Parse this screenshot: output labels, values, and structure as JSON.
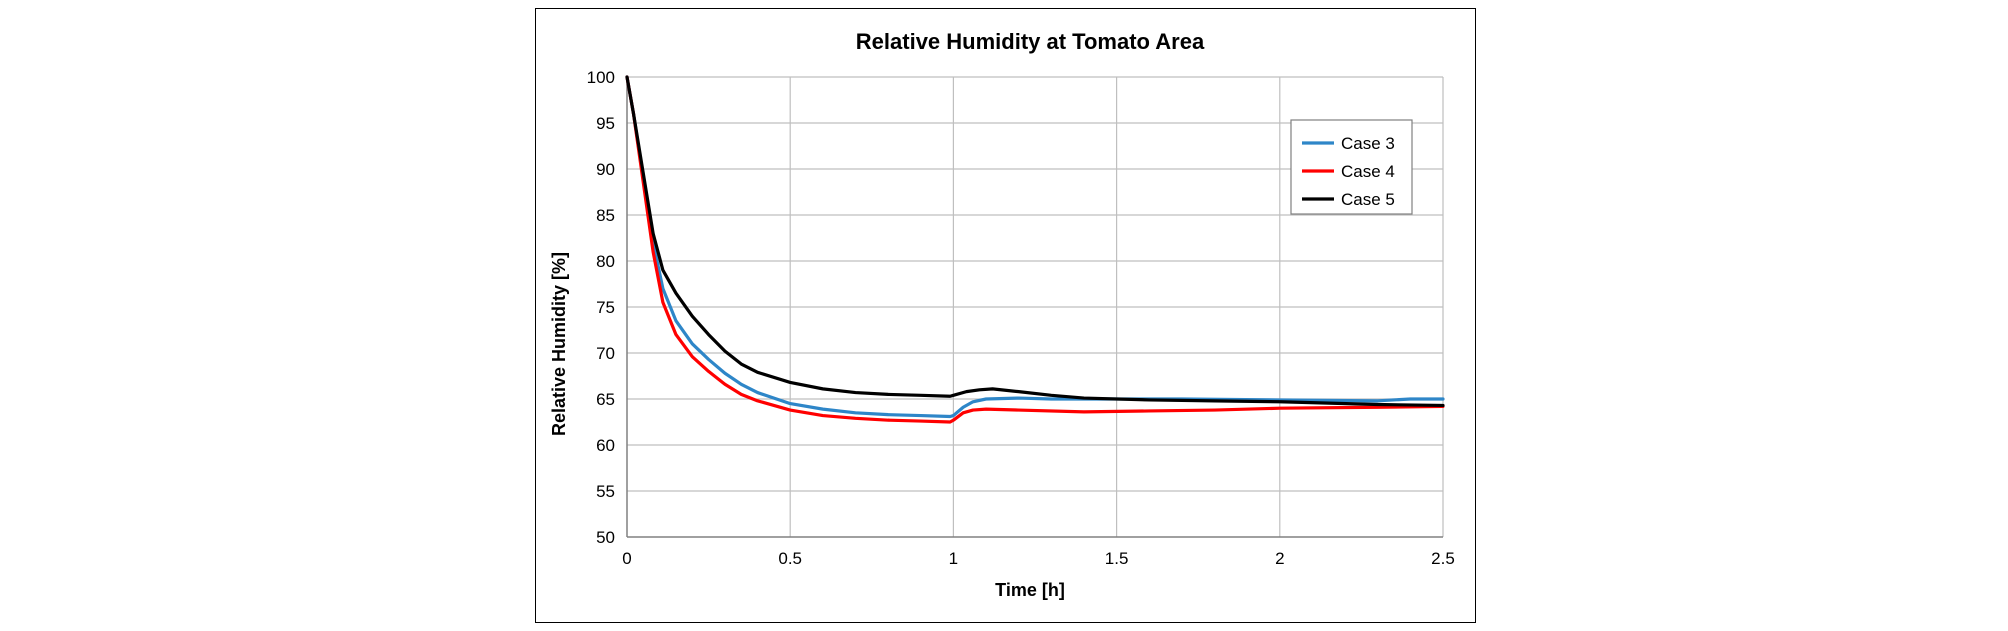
{
  "chart_data": {
    "type": "line",
    "title": "Relative Humidity at Tomato Area",
    "xlabel": "Time [h]",
    "ylabel": "Relative Humidity  [%]",
    "xlim": [
      0,
      2.5
    ],
    "ylim": [
      50,
      100
    ],
    "x_ticks": [
      0,
      0.5,
      1,
      1.5,
      2,
      2.5
    ],
    "x_tick_labels": [
      "0",
      "0.5",
      "1",
      "1.5",
      "2",
      "2.5"
    ],
    "y_ticks": [
      50,
      55,
      60,
      65,
      70,
      75,
      80,
      85,
      90,
      95,
      100
    ],
    "y_tick_labels": [
      "50",
      "55",
      "60",
      "65",
      "70",
      "75",
      "80",
      "85",
      "90",
      "95",
      "100"
    ],
    "grid": true,
    "legend_position": "top-right",
    "series": [
      {
        "name": "Case 3",
        "color": "#2e86c8",
        "points": [
          [
            0,
            100
          ],
          [
            0.02,
            96
          ],
          [
            0.05,
            89
          ],
          [
            0.08,
            82
          ],
          [
            0.11,
            77
          ],
          [
            0.15,
            73.5
          ],
          [
            0.2,
            71
          ],
          [
            0.25,
            69.3
          ],
          [
            0.3,
            67.8
          ],
          [
            0.35,
            66.6
          ],
          [
            0.4,
            65.7
          ],
          [
            0.5,
            64.5
          ],
          [
            0.6,
            63.9
          ],
          [
            0.7,
            63.5
          ],
          [
            0.8,
            63.3
          ],
          [
            0.9,
            63.2
          ],
          [
            0.99,
            63.1
          ],
          [
            1.0,
            63.2
          ],
          [
            1.03,
            64.1
          ],
          [
            1.06,
            64.7
          ],
          [
            1.1,
            65.0
          ],
          [
            1.2,
            65.1
          ],
          [
            1.3,
            65.0
          ],
          [
            1.5,
            65.0
          ],
          [
            1.7,
            65.0
          ],
          [
            2.0,
            64.9
          ],
          [
            2.3,
            64.8
          ],
          [
            2.4,
            65.0
          ],
          [
            2.5,
            65.0
          ]
        ]
      },
      {
        "name": "Case 4",
        "color": "#ff0000",
        "points": [
          [
            0,
            100
          ],
          [
            0.02,
            96
          ],
          [
            0.05,
            88.5
          ],
          [
            0.08,
            81
          ],
          [
            0.11,
            75.5
          ],
          [
            0.15,
            72
          ],
          [
            0.2,
            69.6
          ],
          [
            0.25,
            68
          ],
          [
            0.3,
            66.6
          ],
          [
            0.35,
            65.5
          ],
          [
            0.4,
            64.8
          ],
          [
            0.5,
            63.8
          ],
          [
            0.6,
            63.2
          ],
          [
            0.7,
            62.9
          ],
          [
            0.8,
            62.7
          ],
          [
            0.9,
            62.6
          ],
          [
            0.99,
            62.5
          ],
          [
            1.0,
            62.7
          ],
          [
            1.03,
            63.5
          ],
          [
            1.06,
            63.8
          ],
          [
            1.1,
            63.9
          ],
          [
            1.2,
            63.8
          ],
          [
            1.4,
            63.6
          ],
          [
            1.6,
            63.7
          ],
          [
            1.8,
            63.8
          ],
          [
            2.0,
            64.0
          ],
          [
            2.3,
            64.1
          ],
          [
            2.5,
            64.2
          ]
        ]
      },
      {
        "name": "Case 5",
        "color": "#000000",
        "points": [
          [
            0,
            100
          ],
          [
            0.02,
            96
          ],
          [
            0.05,
            89.5
          ],
          [
            0.08,
            83
          ],
          [
            0.11,
            79
          ],
          [
            0.15,
            76.5
          ],
          [
            0.2,
            74
          ],
          [
            0.25,
            72
          ],
          [
            0.3,
            70.2
          ],
          [
            0.35,
            68.8
          ],
          [
            0.4,
            67.9
          ],
          [
            0.5,
            66.8
          ],
          [
            0.6,
            66.1
          ],
          [
            0.7,
            65.7
          ],
          [
            0.8,
            65.5
          ],
          [
            0.9,
            65.4
          ],
          [
            0.99,
            65.3
          ],
          [
            1.0,
            65.4
          ],
          [
            1.04,
            65.8
          ],
          [
            1.08,
            66.0
          ],
          [
            1.12,
            66.1
          ],
          [
            1.2,
            65.8
          ],
          [
            1.3,
            65.4
          ],
          [
            1.4,
            65.1
          ],
          [
            1.6,
            64.9
          ],
          [
            1.8,
            64.8
          ],
          [
            2.0,
            64.7
          ],
          [
            2.3,
            64.4
          ],
          [
            2.5,
            64.3
          ]
        ]
      }
    ]
  }
}
